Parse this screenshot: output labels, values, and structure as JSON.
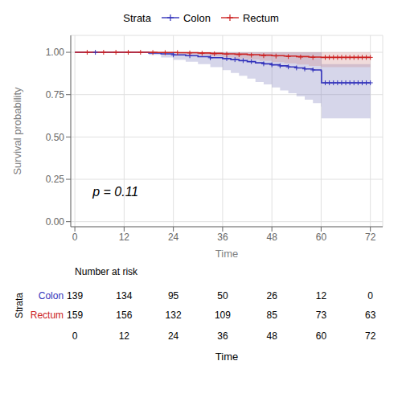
{
  "chart_data": {
    "type": "survival",
    "xlabel": "Time",
    "ylabel": "Survival probability",
    "xlim": [
      -1,
      75
    ],
    "ylim": [
      -0.03,
      1.1
    ],
    "xticks": [
      0,
      12,
      24,
      36,
      48,
      60,
      72
    ],
    "yticks": [
      {
        "value": 0.0,
        "label": "0.00"
      },
      {
        "value": 0.25,
        "label": "0.25"
      },
      {
        "value": 0.5,
        "label": "0.50"
      },
      {
        "value": 0.75,
        "label": "0.75"
      },
      {
        "value": 1.0,
        "label": "1.00"
      }
    ],
    "grid": true,
    "legend": "top",
    "legend_title": "Strata",
    "annotation": "p = 0.11",
    "line_style": "step",
    "series": [
      {
        "name": "Colon",
        "color": "#3333BB",
        "ci_color": "#7777BB",
        "marker": "+",
        "x": [
          0,
          5,
          10,
          15,
          18,
          21,
          24,
          27,
          30,
          33,
          36,
          38,
          40,
          42,
          44,
          46,
          48,
          50,
          52,
          54,
          56,
          58,
          60,
          60.1,
          62,
          64,
          66,
          68,
          72
        ],
        "values": [
          1.0,
          1.0,
          1.0,
          1.0,
          0.996,
          0.991,
          0.985,
          0.98,
          0.974,
          0.968,
          0.963,
          0.957,
          0.951,
          0.945,
          0.938,
          0.932,
          0.926,
          0.92,
          0.914,
          0.908,
          0.902,
          0.896,
          0.89,
          0.82,
          0.82,
          0.82,
          0.82,
          0.82,
          0.82
        ],
        "upper": [
          1.0,
          1.0,
          1.0,
          1.0,
          1.0,
          1.0,
          1.0,
          1.0,
          1.0,
          1.0,
          1.0,
          1.0,
          1.0,
          1.0,
          1.0,
          1.0,
          1.0,
          1.0,
          1.0,
          1.0,
          1.0,
          1.0,
          1.0,
          0.93,
          0.93,
          0.93,
          0.93,
          0.93,
          0.93
        ],
        "lower": [
          1.0,
          1.0,
          1.0,
          1.0,
          0.985,
          0.97,
          0.955,
          0.945,
          0.93,
          0.912,
          0.895,
          0.878,
          0.862,
          0.845,
          0.825,
          0.81,
          0.792,
          0.775,
          0.758,
          0.74,
          0.72,
          0.7,
          0.68,
          0.61,
          0.61,
          0.61,
          0.61,
          0.61,
          0.61
        ],
        "censor_x": [
          5,
          24,
          28,
          33,
          37,
          39,
          41,
          43,
          46,
          48,
          50,
          52,
          54,
          56,
          58,
          61,
          62,
          63,
          64,
          65,
          66,
          67,
          68,
          69,
          70,
          71,
          72
        ],
        "censor_values": [
          1.0,
          0.985,
          0.98,
          0.968,
          0.963,
          0.957,
          0.951,
          0.945,
          0.932,
          0.926,
          0.92,
          0.914,
          0.908,
          0.902,
          0.896,
          0.82,
          0.82,
          0.82,
          0.82,
          0.82,
          0.82,
          0.82,
          0.82,
          0.82,
          0.82,
          0.82,
          0.82
        ],
        "at_risk": [
          139,
          134,
          95,
          50,
          26,
          12,
          0
        ]
      },
      {
        "name": "Rectum",
        "color": "#CC2222",
        "ci_color": "#CC8888",
        "marker": "+",
        "x": [
          0,
          5,
          10,
          15,
          20,
          25,
          30,
          33,
          36,
          39,
          42,
          45,
          48,
          51,
          54,
          57,
          60,
          63,
          66,
          69,
          72
        ],
        "values": [
          1.0,
          1.0,
          1.0,
          1.0,
          0.999,
          0.998,
          0.996,
          0.994,
          0.991,
          0.989,
          0.986,
          0.983,
          0.98,
          0.978,
          0.975,
          0.972,
          0.97,
          0.97,
          0.97,
          0.97,
          0.97
        ],
        "upper": [
          1.0,
          1.0,
          1.0,
          1.0,
          1.0,
          1.0,
          1.0,
          1.0,
          1.0,
          1.0,
          1.0,
          1.0,
          1.0,
          1.0,
          1.0,
          1.0,
          1.0,
          1.0,
          1.0,
          1.0,
          1.0
        ],
        "lower": [
          1.0,
          1.0,
          1.0,
          1.0,
          0.993,
          0.988,
          0.982,
          0.977,
          0.97,
          0.963,
          0.957,
          0.95,
          0.942,
          0.935,
          0.928,
          0.92,
          0.913,
          0.913,
          0.913,
          0.913,
          0.913
        ],
        "censor_x": [
          3,
          7,
          10,
          13,
          16,
          19,
          22,
          25,
          28,
          31,
          34,
          37,
          40,
          43,
          46,
          49,
          52,
          55,
          58,
          61,
          62,
          63,
          64,
          65,
          66,
          67,
          68,
          69,
          70,
          71,
          72
        ],
        "censor_values": [
          1.0,
          1.0,
          1.0,
          1.0,
          1.0,
          0.999,
          0.998,
          0.998,
          0.996,
          0.994,
          0.991,
          0.989,
          0.986,
          0.983,
          0.98,
          0.978,
          0.975,
          0.972,
          0.97,
          0.97,
          0.97,
          0.97,
          0.97,
          0.97,
          0.97,
          0.97,
          0.97,
          0.97,
          0.97,
          0.97,
          0.97
        ],
        "at_risk": [
          159,
          156,
          132,
          109,
          85,
          73,
          63
        ]
      }
    ],
    "risk_table": {
      "title": "Number at risk",
      "label": "Strata",
      "times": [
        0,
        12,
        24,
        36,
        48,
        60,
        72
      ]
    }
  }
}
